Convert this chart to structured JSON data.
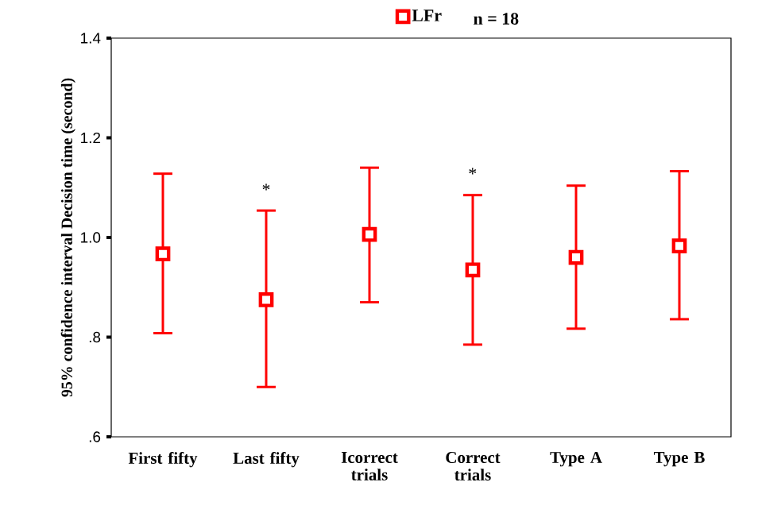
{
  "chart_data": {
    "type": "scatter",
    "ylabel": "95% confidence interval  Decision time (second)",
    "categories": [
      "First fifty",
      "Last fifty",
      "Icorrect trials",
      "Correct trials",
      "Type A",
      "Type B"
    ],
    "ylim": [
      0.6,
      1.4
    ],
    "yticks": [
      {
        "value": 0.6,
        "label": ".6"
      },
      {
        "value": 0.8,
        "label": ".8"
      },
      {
        "value": 1.0,
        "label": "1.0"
      },
      {
        "value": 1.2,
        "label": "1.2"
      },
      {
        "value": 1.4,
        "label": "1.4"
      }
    ],
    "series": [
      {
        "name": "LFr",
        "color": "#ff0000",
        "values": [
          0.967,
          0.875,
          1.006,
          0.935,
          0.96,
          0.983
        ],
        "errors": [
          [
            0.808,
            1.128
          ],
          [
            0.7,
            1.054
          ],
          [
            0.87,
            1.14
          ],
          [
            0.785,
            1.085
          ],
          [
            0.817,
            1.104
          ],
          [
            0.836,
            1.133
          ]
        ]
      }
    ],
    "marker": "square",
    "legend": "top",
    "grid": false,
    "annotations": [
      "n = 18",
      "*",
      "*"
    ]
  }
}
